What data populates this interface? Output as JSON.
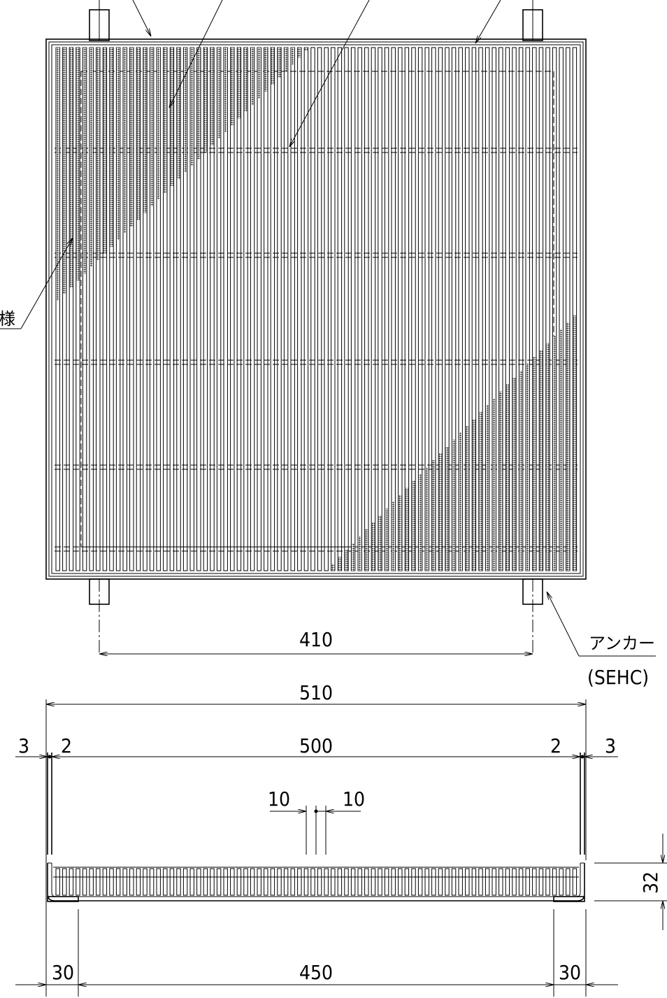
{
  "labels": {
    "anchor": "アンカー",
    "anchor_code": "(SEHC)",
    "pattern_note": "様"
  },
  "dimensions": {
    "anchor_pitch": "410",
    "overall_width": "510",
    "inner_width": "500",
    "frame_left": "3",
    "gap_left": "2",
    "gap_right": "2",
    "frame_right": "3",
    "bar_pitch_left": "10",
    "bar_pitch_right": "10",
    "height": "32",
    "support_left": "30",
    "support_span": "450",
    "support_right": "30"
  }
}
